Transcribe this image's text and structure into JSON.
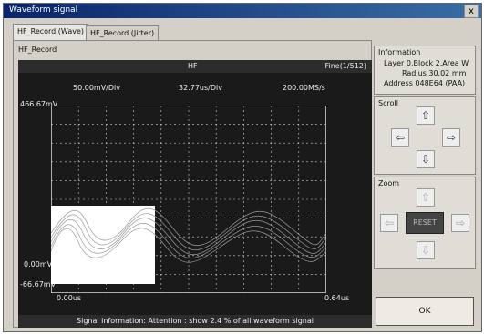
{
  "window": {
    "title": "Waveform signal",
    "close_label": "x"
  },
  "tabs": [
    {
      "label": "HF_Record (Wave)"
    },
    {
      "label": "HF_Record (Jitter)"
    }
  ],
  "panel": {
    "label": "HF_Record"
  },
  "scope": {
    "channel": "HF",
    "fine": "Fine(1/512)",
    "v_scale": "50.00mV/Div",
    "t_scale": "32.77us/Div",
    "sample_rate": "200.00MS/s",
    "y_top": "466.67mV",
    "y_zero": "0.00mV",
    "y_bottom": "-66.67mV",
    "x_start": "0.00us",
    "x_end": "0.64us",
    "signal_info": "Signal information:  Attention : show 2.4 % of all waveform signal"
  },
  "information": {
    "heading": "Information",
    "line1": "Layer 0,Block 2,Area W",
    "line2": "Radius 30.02 mm",
    "line3": "Address 048E64 (PAA)"
  },
  "scroll": {
    "heading": "Scroll",
    "up": "up-icon",
    "down": "down-icon",
    "left": "left-icon",
    "right": "right-icon"
  },
  "zoom": {
    "heading": "Zoom",
    "reset_label": "RESET"
  },
  "ok_label": "OK",
  "colors": {
    "background": "#1a1a1a",
    "trace": "#bbbbbb",
    "grid": "#cccccc"
  }
}
